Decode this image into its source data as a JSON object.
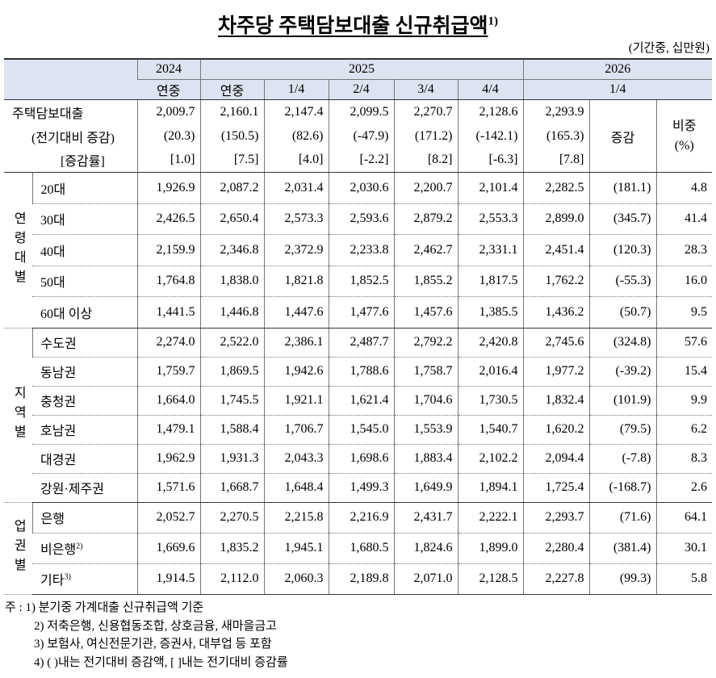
{
  "title": "차주당 주택담보대출 신규취급액",
  "title_sup": "1)",
  "unit": "(기간중, 십만원)",
  "header": {
    "years": [
      "2024",
      "2025",
      "2026"
    ],
    "periods": [
      "연중",
      "연중",
      "1/4",
      "2/4",
      "3/4",
      "4/4",
      "1/4"
    ],
    "change": "증감",
    "share": "비중",
    "share_unit": "(%)"
  },
  "total": {
    "label": "주택담보대출",
    "values": [
      "2,009.7",
      "2,160.1",
      "2,147.4",
      "2,099.5",
      "2,270.7",
      "2,128.6",
      "2,293.9"
    ],
    "change_label": "(전기대비 증감)",
    "changes": [
      "(20.3)",
      "(150.5)",
      "(82.6)",
      "(-47.9)",
      "(171.2)",
      "(-142.1)",
      "(165.3)"
    ],
    "rate_label": "[증감률]",
    "rates": [
      "[1.0]",
      "[7.5]",
      "[4.0]",
      "[-2.2]",
      "[8.2]",
      "[-6.3]",
      "[7.8]"
    ]
  },
  "groups": [
    {
      "label": "연령대별",
      "rows": [
        {
          "label": "20대",
          "values": [
            "1,926.9",
            "2,087.2",
            "2,031.4",
            "2,030.6",
            "2,200.7",
            "2,101.4",
            "2,282.5",
            "(181.1)",
            "4.8"
          ]
        },
        {
          "label": "30대",
          "values": [
            "2,426.5",
            "2,650.4",
            "2,573.3",
            "2,593.6",
            "2,879.2",
            "2,553.3",
            "2,899.0",
            "(345.7)",
            "41.4"
          ]
        },
        {
          "label": "40대",
          "values": [
            "2,159.9",
            "2,346.8",
            "2,372.9",
            "2,233.8",
            "2,462.7",
            "2,331.1",
            "2,451.4",
            "(120.3)",
            "28.3"
          ]
        },
        {
          "label": "50대",
          "values": [
            "1,764.8",
            "1,838.0",
            "1,821.8",
            "1,852.5",
            "1,855.2",
            "1,817.5",
            "1,762.2",
            "(-55.3)",
            "16.0"
          ]
        },
        {
          "label": "60대 이상",
          "values": [
            "1,441.5",
            "1,446.8",
            "1,447.6",
            "1,477.6",
            "1,457.6",
            "1,385.5",
            "1,436.2",
            "(50.7)",
            "9.5"
          ]
        }
      ]
    },
    {
      "label": "지역별",
      "rows": [
        {
          "label": "수도권",
          "values": [
            "2,274.0",
            "2,522.0",
            "2,386.1",
            "2,487.7",
            "2,792.2",
            "2,420.8",
            "2,745.6",
            "(324.8)",
            "57.6"
          ]
        },
        {
          "label": "동남권",
          "values": [
            "1,759.7",
            "1,869.5",
            "1,942.6",
            "1,788.6",
            "1,758.7",
            "2,016.4",
            "1,977.2",
            "(-39.2)",
            "15.4"
          ]
        },
        {
          "label": "충청권",
          "values": [
            "1,664.0",
            "1,745.5",
            "1,921.1",
            "1,621.4",
            "1,704.6",
            "1,730.5",
            "1,832.4",
            "(101.9)",
            "9.9"
          ]
        },
        {
          "label": "호남권",
          "values": [
            "1,479.1",
            "1,588.4",
            "1,706.7",
            "1,545.0",
            "1,553.9",
            "1,540.7",
            "1,620.2",
            "(79.5)",
            "6.2"
          ]
        },
        {
          "label": "대경권",
          "values": [
            "1,962.9",
            "1,931.3",
            "2,043.3",
            "1,698.6",
            "1,883.4",
            "2,102.2",
            "2,094.4",
            "(-7.8)",
            "8.3"
          ]
        },
        {
          "label": "강원·제주권",
          "values": [
            "1,571.6",
            "1,668.7",
            "1,648.4",
            "1,499.3",
            "1,649.9",
            "1,894.1",
            "1,725.4",
            "(-168.7)",
            "2.6"
          ]
        }
      ]
    },
    {
      "label": "업권별",
      "rows": [
        {
          "label": "은행",
          "values": [
            "2,052.7",
            "2,270.5",
            "2,215.8",
            "2,216.9",
            "2,431.7",
            "2,222.1",
            "2,293.7",
            "(71.6)",
            "64.1"
          ]
        },
        {
          "label": "비은행",
          "sup": "2)",
          "values": [
            "1,669.6",
            "1,835.2",
            "1,945.1",
            "1,680.5",
            "1,824.6",
            "1,899.0",
            "2,280.4",
            "(381.4)",
            "30.1"
          ]
        },
        {
          "label": "기타",
          "sup": "3)",
          "values": [
            "1,914.5",
            "2,112.0",
            "2,060.3",
            "2,189.8",
            "2,071.0",
            "2,128.5",
            "2,227.8",
            "(99.3)",
            "5.8"
          ]
        }
      ]
    }
  ],
  "notes_prefix": "주 :",
  "notes": [
    "1) 분기중 가계대출 신규취급액 기준",
    "2) 저축은행, 신용협동조합, 상호금융, 새마을금고",
    "3) 보험사, 여신전문기관, 증권사, 대부업 등 포함",
    "4) ( )내는 전기대비 증감액, [ ]내는 전기대비 증감률"
  ]
}
